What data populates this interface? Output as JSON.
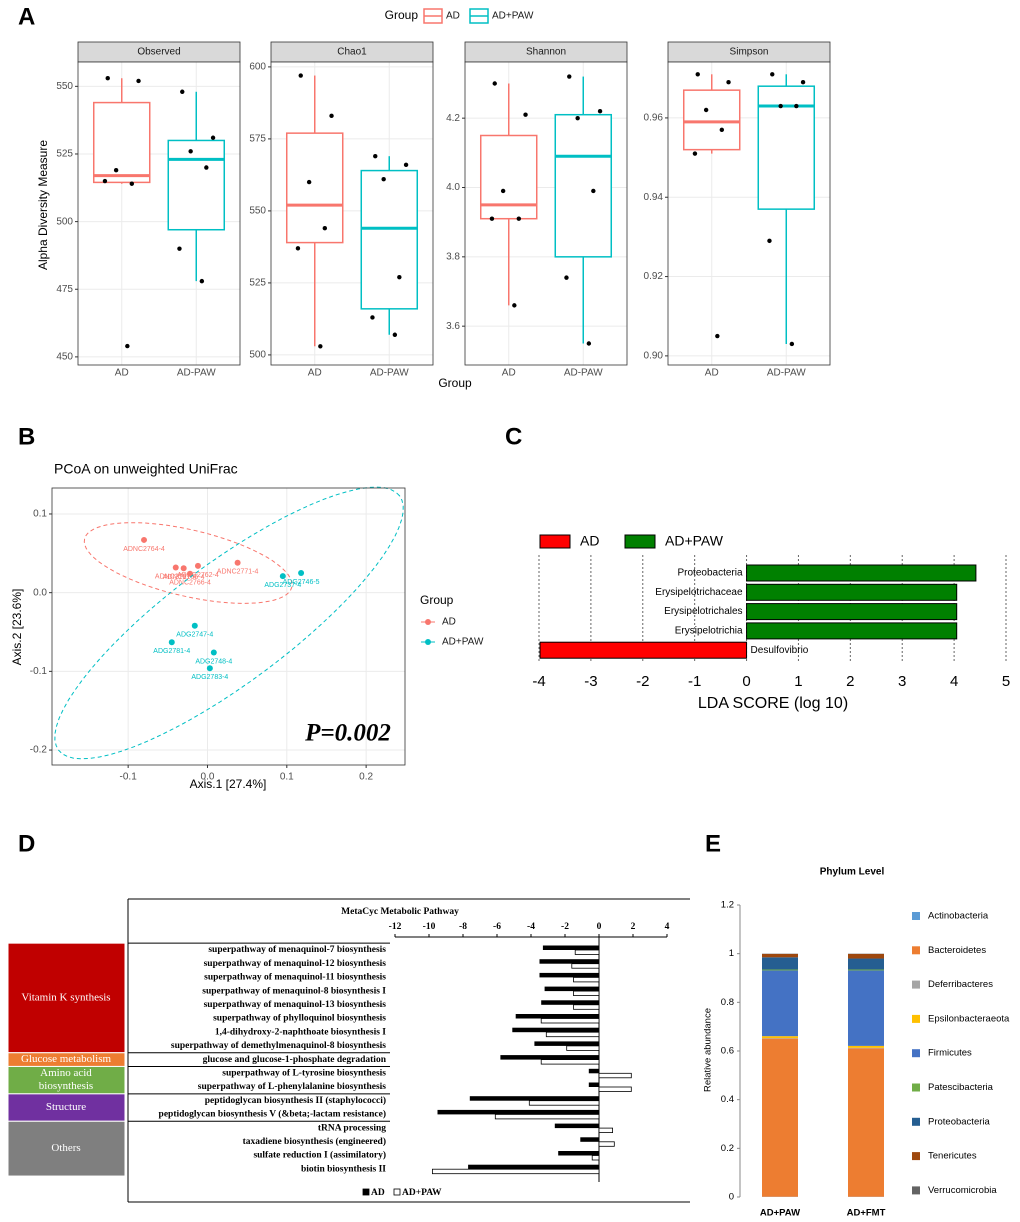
{
  "chart_data": [
    {
      "panel": "A",
      "type": "box",
      "legend_title": "Group",
      "series": [
        {
          "name": "AD",
          "color": "#f8766d"
        },
        {
          "name": "AD+PAW",
          "color": "#00bfc4"
        }
      ],
      "ylabel": "Alpha Diversity Measure",
      "xlabel": "Group",
      "categories": [
        "AD",
        "AD-PAW"
      ],
      "facets": [
        {
          "title": "Observed",
          "ylim": [
            447,
            559
          ],
          "yticks": [
            450,
            475,
            500,
            525,
            550
          ],
          "boxes": [
            {
              "whiskers": [
                514,
                553
              ],
              "quartiles": [
                514.5,
                544
              ],
              "median": 517,
              "points": [
                553,
                552,
                519,
                514,
                515,
                454
              ]
            },
            {
              "whiskers": [
                478,
                548
              ],
              "quartiles": [
                497,
                530
              ],
              "median": 523,
              "points": [
                548,
                531,
                526,
                520,
                490,
                478
              ]
            }
          ]
        },
        {
          "title": "Chao1",
          "ylim": [
            496.5,
            601.7
          ],
          "yticks": [
            500,
            525,
            550,
            575,
            600
          ],
          "boxes": [
            {
              "whiskers": [
                503,
                597
              ],
              "quartiles": [
                539,
                577
              ],
              "median": 552,
              "points": [
                597,
                583,
                560,
                544,
                537,
                503
              ]
            },
            {
              "whiskers": [
                507,
                569
              ],
              "quartiles": [
                516,
                564
              ],
              "median": 544,
              "points": [
                569,
                566,
                561,
                527,
                513,
                507
              ]
            }
          ]
        },
        {
          "title": "Shannon",
          "ylim": [
            3.488,
            4.362
          ],
          "yticks": [
            3.6,
            3.8,
            {
              "value": 4,
              "label": "4.0"
            },
            4.2
          ],
          "boxes": [
            {
              "whiskers": [
                3.66,
                4.3
              ],
              "quartiles": [
                3.91,
                4.15
              ],
              "median": 3.95,
              "points": [
                4.3,
                4.21,
                3.99,
                3.91,
                3.91,
                3.66
              ]
            },
            {
              "whiskers": [
                3.55,
                4.32
              ],
              "quartiles": [
                3.8,
                4.21
              ],
              "median": 4.09,
              "points": [
                4.32,
                4.22,
                4.2,
                3.99,
                3.74,
                3.55
              ]
            }
          ]
        },
        {
          "title": "Simpson",
          "ylim": [
            0.8977,
            0.9741
          ],
          "yticks": [
            {
              "value": 0.9,
              "label": "0.90"
            },
            0.92,
            0.94,
            0.96
          ],
          "boxes": [
            {
              "whiskers": [
                0.951,
                0.971
              ],
              "quartiles": [
                0.952,
                0.967
              ],
              "median": 0.959,
              "points": [
                0.971,
                0.969,
                0.962,
                0.957,
                0.951,
                0.905
              ]
            },
            {
              "whiskers": [
                0.903,
                0.971
              ],
              "quartiles": [
                0.937,
                0.968
              ],
              "median": 0.963,
              "points": [
                0.971,
                0.969,
                0.963,
                0.963,
                0.929,
                0.903
              ]
            }
          ]
        }
      ]
    },
    {
      "panel": "B",
      "type": "scatter",
      "title": "PCoA on unweighted UniFrac",
      "xlabel": "Axis.1   [27.4%]",
      "ylabel": "Axis.2   [23.6%]",
      "xlim": [
        -0.196,
        0.249
      ],
      "xticks": [
        -0.1,
        {
          "value": 0,
          "label": "0.0"
        },
        0.1,
        0.2
      ],
      "ylim": [
        -0.219,
        0.133
      ],
      "yticks": [
        -0.2,
        -0.1,
        {
          "value": 0,
          "label": "0.0"
        },
        0.1
      ],
      "grid": true,
      "legend_title": "Group",
      "annotation": "P=0.002",
      "series": [
        {
          "name": "AD",
          "color": "#f8766d",
          "x": [
            -0.08,
            -0.04,
            -0.03,
            -0.012,
            0.038,
            -0.022
          ],
          "y": [
            0.067,
            0.032,
            0.031,
            0.034,
            0.038,
            0.024
          ],
          "labels": [
            "ADNC2764-4",
            "ADNC2761-4",
            "ADNC2765-4",
            "ADNC2762-4",
            "ADNC2771-4",
            "ADNC2766-4"
          ]
        },
        {
          "name": "AD+PAW",
          "color": "#00bfc4",
          "x": [
            0.118,
            0.095,
            -0.016,
            -0.045,
            0.008,
            0.003
          ],
          "y": [
            0.025,
            0.021,
            -0.042,
            -0.063,
            -0.076,
            -0.096
          ],
          "labels": [
            "ADG2746-5",
            "ADG2737-4",
            "ADG2747-4",
            "ADG2781-4",
            "ADG2748-4",
            "ADG2783-4"
          ]
        }
      ]
    },
    {
      "panel": "C",
      "type": "lda",
      "xlabel": "LDA SCORE (log 10)",
      "xlim": [
        -4,
        5
      ],
      "xticks": [
        -4,
        -3,
        -2,
        -1,
        0,
        1,
        2,
        3,
        4,
        5
      ],
      "categories": [
        "Proteobacteria",
        "Erysipelotrichaceae",
        "Erysipelotrichales",
        "Erysipelotrichia",
        "Desulfovibrio"
      ],
      "series": [
        {
          "name": "AD",
          "color": "#ff0000",
          "values": [
            null,
            null,
            null,
            null,
            -3.98
          ]
        },
        {
          "name": "AD+PAW",
          "color": "#008000",
          "values": [
            4.42,
            4.05,
            4.05,
            4.05,
            null
          ]
        }
      ]
    },
    {
      "panel": "D",
      "type": "pathway",
      "title": "MetaCyc Metabolic Pathway",
      "xlim": [
        -12,
        4
      ],
      "xticks": [
        -12,
        -10,
        -8,
        -6,
        -4,
        -2,
        0,
        2,
        4
      ],
      "groups": [
        {
          "label": [
            "Vitamin K synthesis"
          ],
          "color": "#c00000",
          "pathways": [
            "superpathway of menaquinol-7 biosynthesis",
            "superpathway of menaquinol-12 biosynthesis",
            "superpathway of menaquinol-11 biosynthesis",
            "superpathway of menaquinol-8 biosynthesis I",
            "superpathway of menaquinol-13 biosynthesis",
            "superpathway of phylloquinol biosynthesis",
            "1,4-dihydroxy-2-naphthoate biosynthesis I",
            "superpathway of demethylmenaquinol-8 biosynthesis"
          ]
        },
        {
          "label": [
            "Glucose metabolism"
          ],
          "color": "#ed7d31",
          "pathways": [
            "glucose and glucose-1-phosphate degradation"
          ]
        },
        {
          "label": [
            "Amino acid",
            "biosynthesis"
          ],
          "color": "#70ad47",
          "pathways": [
            "superpathway of L-tyrosine biosynthesis",
            "superpathway of L-phenylalanine biosynthesis"
          ]
        },
        {
          "label": [
            "Structure"
          ],
          "color": "#7030a0",
          "pathways": [
            "peptidoglycan biosynthesis II (staphylococci)",
            "peptidoglycan biosynthesis V (&beta;-lactam resistance)"
          ]
        },
        {
          "label": [
            "Others"
          ],
          "color": "#7f7f7f",
          "pathways": [
            "tRNA processing",
            "taxadiene biosynthesis (engineered)",
            "sulfate reduction I (assimilatory)",
            "biotin biosynthesis II"
          ]
        }
      ],
      "series": [
        {
          "name": "AD",
          "color": "#000000",
          "values": [
            -3.3,
            -3.5,
            -3.5,
            -3.2,
            -3.4,
            -4.9,
            -5.1,
            -3.8,
            -5.8,
            -0.6,
            -0.6,
            -7.6,
            -9.5,
            -2.6,
            -1.1,
            -2.4,
            -7.7
          ]
        },
        {
          "name": "AD+PAW",
          "color": "#ffffff",
          "values": [
            -1.4,
            -1.6,
            -1.5,
            -1.5,
            -1.5,
            -3.4,
            -3.1,
            -1.9,
            -3.4,
            1.9,
            1.9,
            -4.1,
            -6.1,
            0.8,
            0.9,
            -0.4,
            -9.8
          ]
        }
      ]
    },
    {
      "panel": "E",
      "type": "stacked-bar",
      "title": "Phylum Level",
      "ylabel": "Relative abundance",
      "categories": [
        "AD+PAW",
        "AD+FMT"
      ],
      "ylim": [
        0,
        1.2
      ],
      "yticks": [
        0,
        0.2,
        0.4,
        0.6,
        0.8,
        1,
        1.2
      ],
      "series": [
        {
          "name": "Actinobacteria",
          "color": "#5b9bd5",
          "values": [
            0.001,
            0.001
          ]
        },
        {
          "name": "Bacteroidetes",
          "color": "#ed7d31",
          "values": [
            0.65,
            0.61
          ]
        },
        {
          "name": "Deferribacteres",
          "color": "#a5a5a5",
          "values": [
            0.002,
            0.002
          ]
        },
        {
          "name": "Epsilonbacteraeota",
          "color": "#ffc000",
          "values": [
            0.008,
            0.008
          ]
        },
        {
          "name": "Firmicutes",
          "color": "#4472c4",
          "values": [
            0.27,
            0.31
          ]
        },
        {
          "name": "Patescibacteria",
          "color": "#70ad47",
          "values": [
            0.004,
            0.004
          ]
        },
        {
          "name": "Proteobacteria",
          "color": "#255e91",
          "values": [
            0.05,
            0.045
          ]
        },
        {
          "name": "Tenericutes",
          "color": "#9e480e",
          "values": [
            0.014,
            0.019
          ]
        },
        {
          "name": "Verrucomicrobia",
          "color": "#636363",
          "values": [
            0.001,
            0.001
          ]
        }
      ]
    }
  ]
}
